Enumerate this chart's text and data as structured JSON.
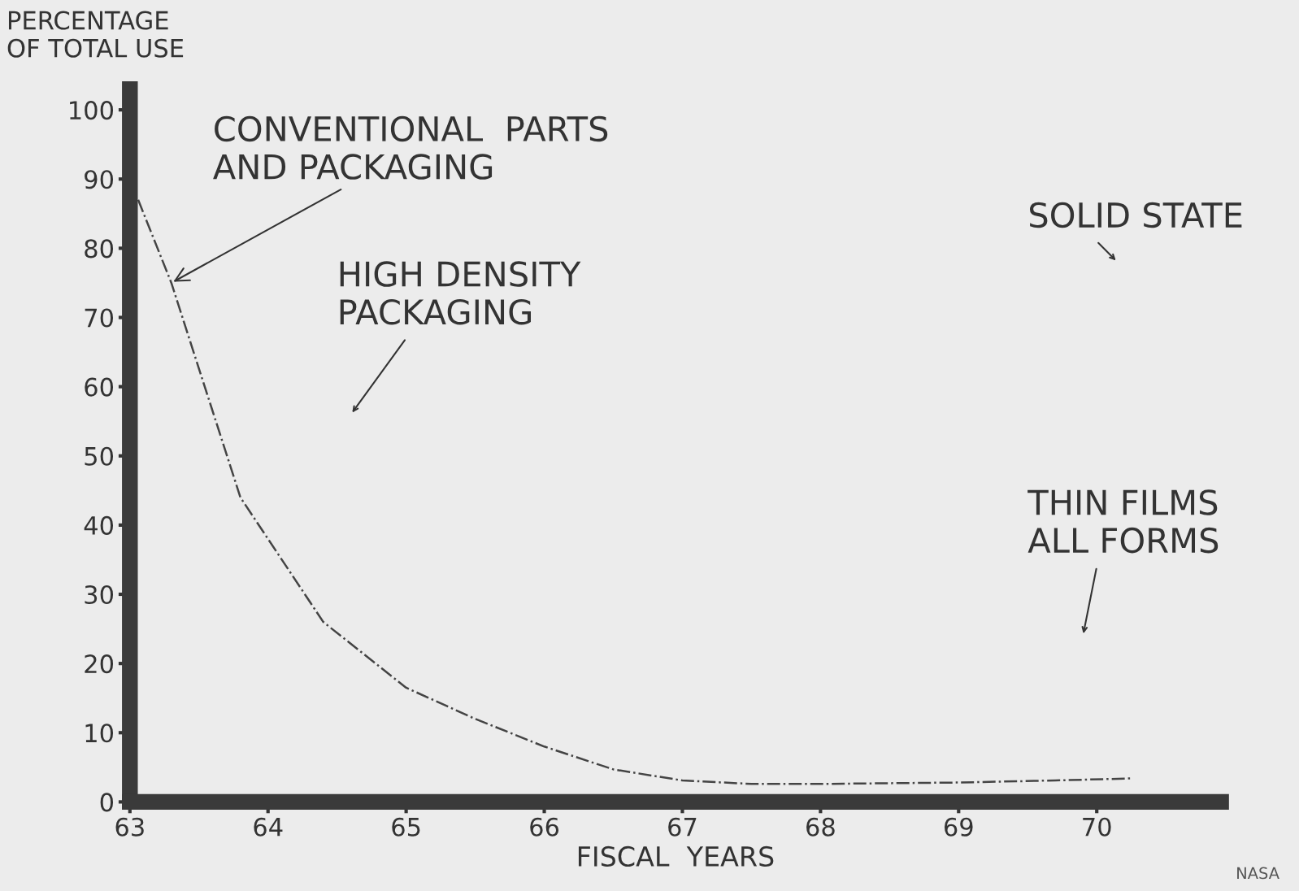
{
  "chart_data": {
    "type": "line",
    "ylabel": "PERCENTAGE\nOF TOTAL USE",
    "xlabel": "FISCAL  YEARS",
    "x": [
      63.06,
      63.3,
      63.8,
      64.4,
      65.0,
      65.5,
      66.0,
      66.5,
      67.0,
      67.5,
      68.0,
      69.0,
      69.7,
      70.26
    ],
    "series": [
      {
        "color": "#444444",
        "values": [
          87,
          75,
          44,
          26,
          16.5,
          12,
          8,
          4.7,
          3.1,
          2.6,
          2.6,
          2.8,
          3.1,
          3.4
        ]
      }
    ],
    "line_style": "dashdot",
    "marker": "none",
    "xlim": [
      63,
      70.9
    ],
    "xticks": [
      63,
      64,
      65,
      66,
      67,
      68,
      69,
      70
    ],
    "ylim": [
      0,
      103
    ],
    "yticks": [
      0,
      10,
      20,
      30,
      40,
      50,
      60,
      70,
      80,
      90,
      100
    ],
    "grid": false,
    "legend": false,
    "annotations": [
      {
        "text": "CONVENTIONAL  PARTS\nAND PACKAGING",
        "x": 63.3,
        "y": 75
      },
      "HIGH DENSITY\nPACKAGING",
      "SOLID STATE",
      "THIN FILMS\nALL FORMS",
      "NASA"
    ]
  }
}
